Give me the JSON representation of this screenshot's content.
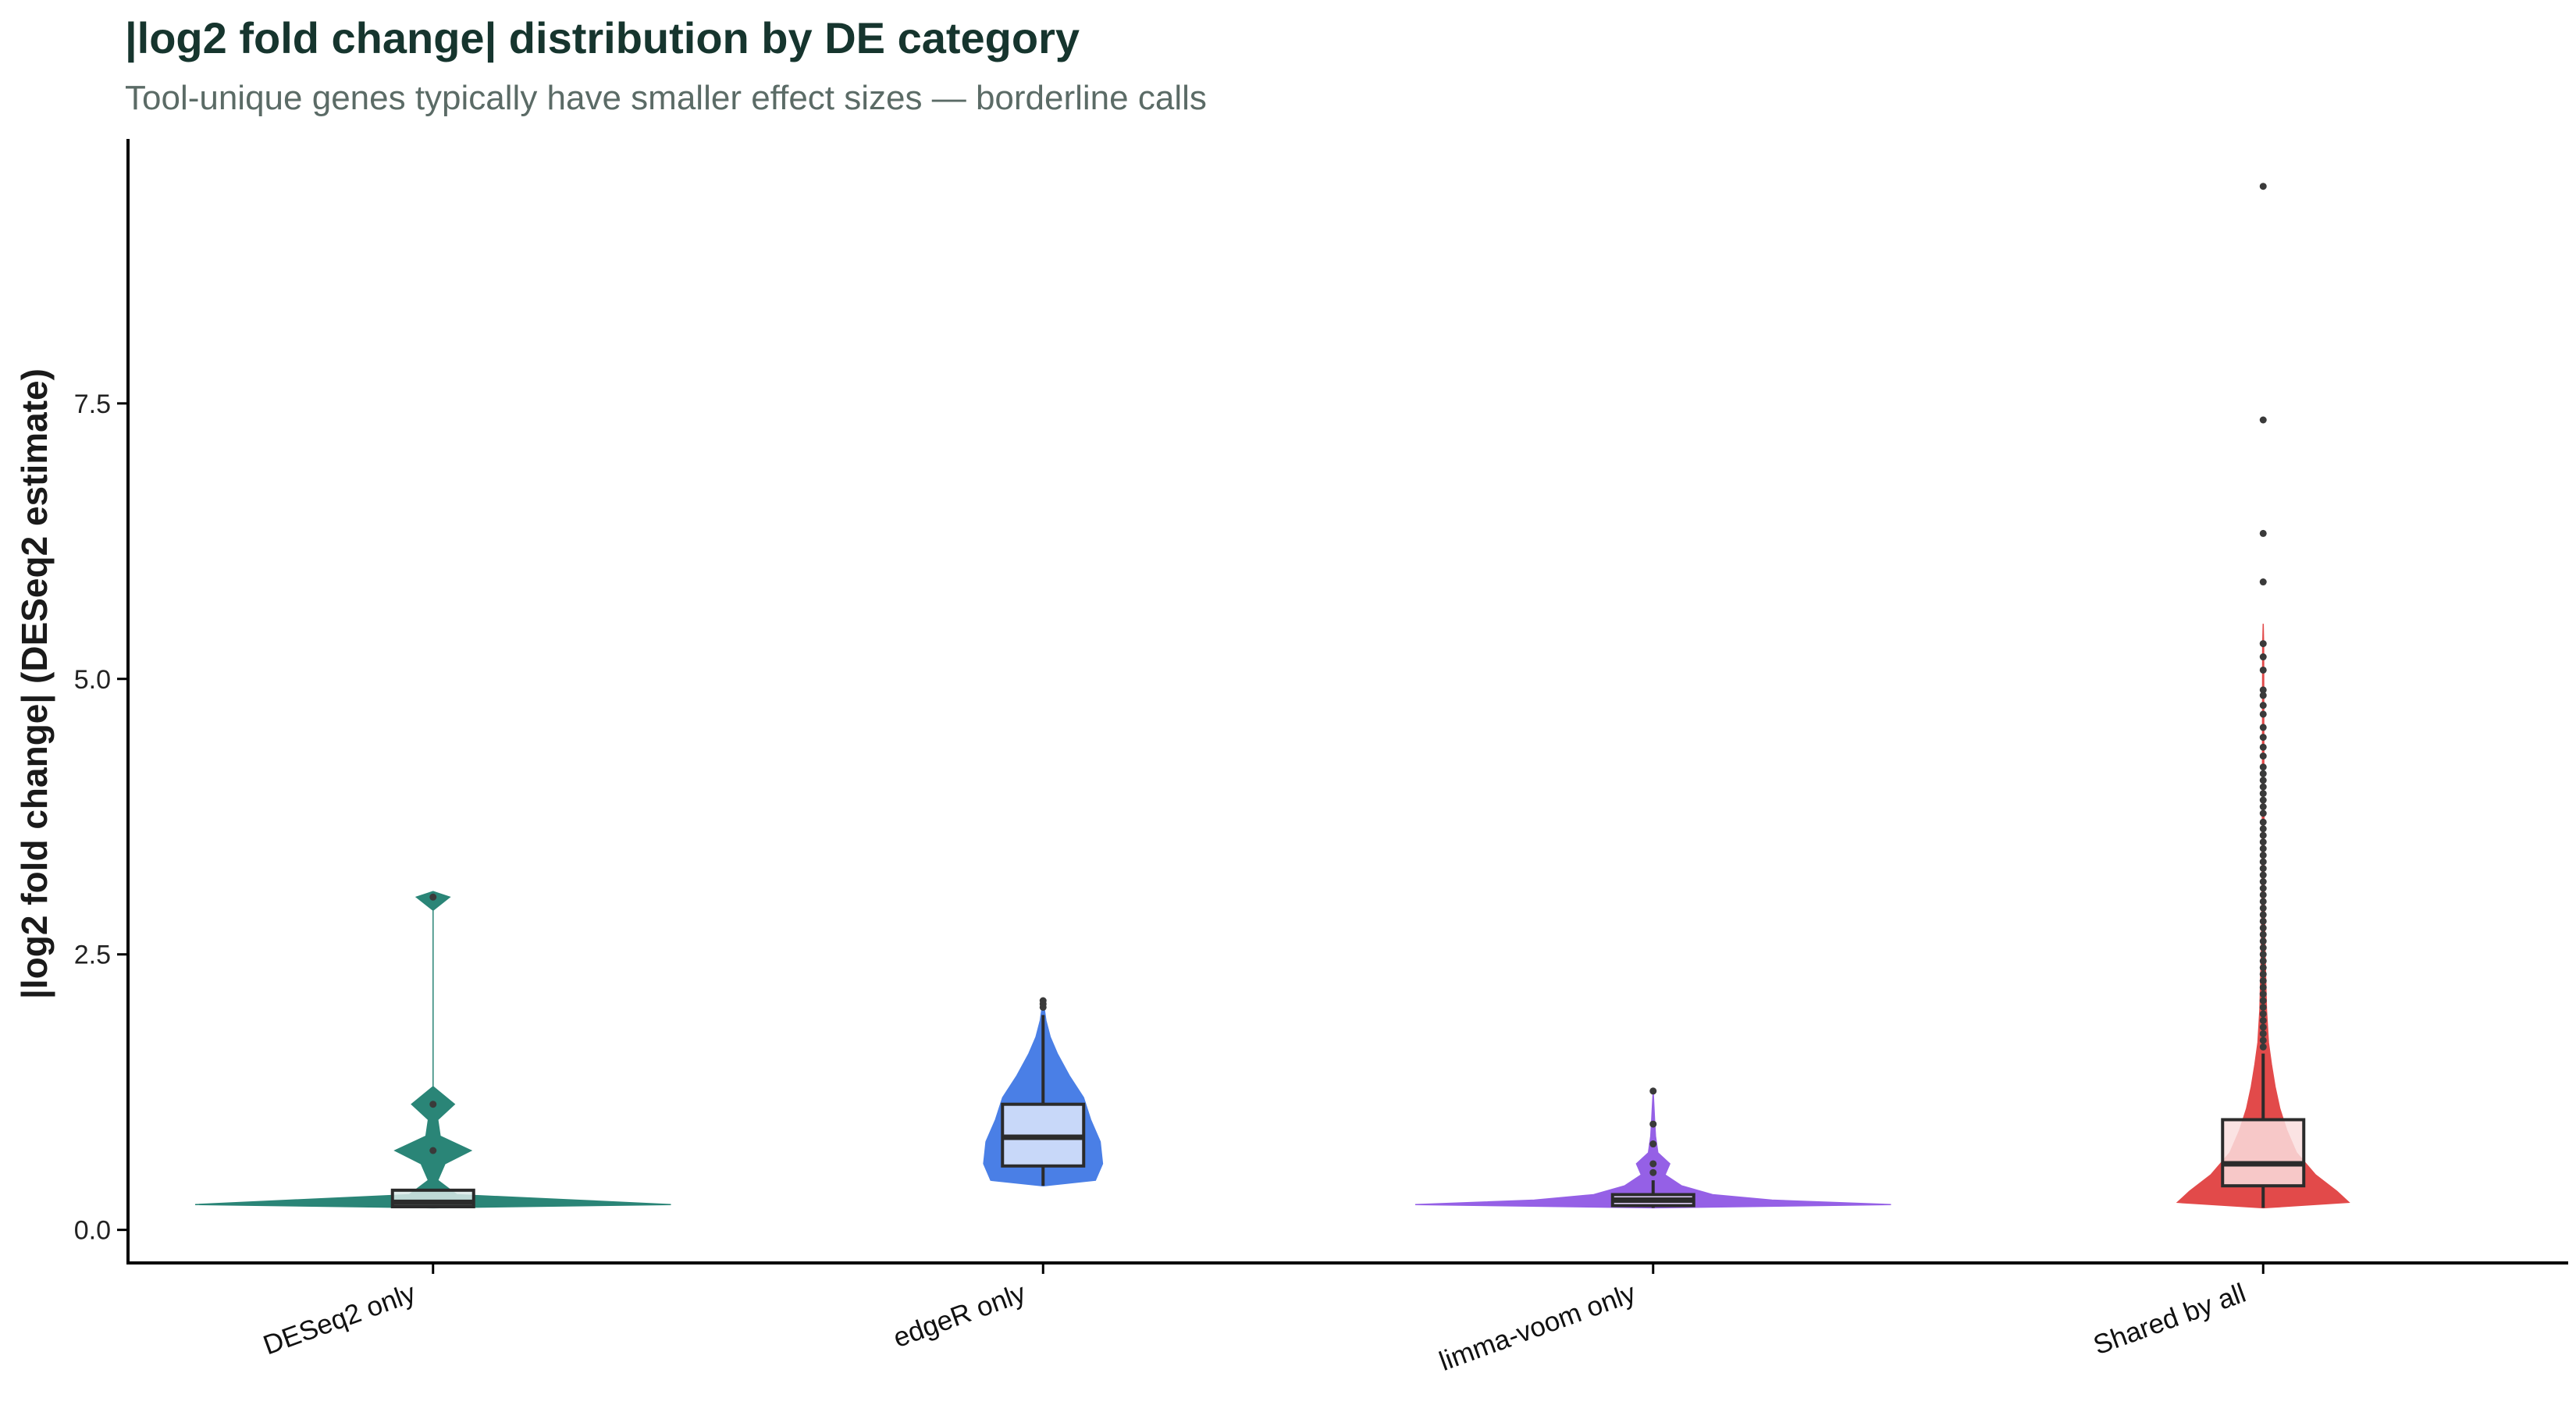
{
  "chart_data": {
    "type": "violin",
    "title": "|log2 fold change| distribution by DE category",
    "subtitle": "Tool-unique genes typically have smaller effect sizes — borderline calls",
    "xlabel": "",
    "ylabel": "|log2 fold change| (DESeq2 estimate)",
    "ylim": [
      -0.3,
      9.9
    ],
    "yticks": [
      "0.0",
      "2.5",
      "5.0",
      "7.5"
    ],
    "grid": false,
    "legend": "none",
    "categories": [
      "DESeq2 only",
      "edgeR only",
      "limma-voom only",
      "Shared by all"
    ],
    "colors": {
      "DESeq2 only": "#2a8577",
      "edgeR only": "#4a7fe6",
      "limma-voom only": "#9560e6",
      "Shared by all": "#e24a4a"
    },
    "boxes": [
      {
        "category": "DESeq2 only",
        "q1": 0.21,
        "median": 0.25,
        "q3": 0.36,
        "whisker_low": 0.2,
        "whisker_high": 0.36
      },
      {
        "category": "edgeR only",
        "q1": 0.58,
        "median": 0.84,
        "q3": 1.14,
        "whisker_low": 0.4,
        "whisker_high": 1.95
      },
      {
        "category": "limma-voom only",
        "q1": 0.22,
        "median": 0.27,
        "q3": 0.32,
        "whisker_low": 0.2,
        "whisker_high": 0.45
      },
      {
        "category": "Shared by all",
        "q1": 0.4,
        "median": 0.6,
        "q3": 1.0,
        "whisker_low": 0.2,
        "whisker_high": 1.6
      }
    ],
    "outliers": [
      {
        "category": "DESeq2 only",
        "values": [
          3.02,
          1.14,
          0.72
        ]
      },
      {
        "category": "edgeR only",
        "values": [
          2.02,
          2.05,
          2.08
        ]
      },
      {
        "category": "limma-voom only",
        "values": [
          1.26,
          0.96,
          0.78,
          0.6,
          0.52
        ]
      },
      {
        "category": "Shared by all",
        "values": [
          9.47,
          7.35,
          6.32,
          5.88,
          5.32,
          5.2,
          5.08,
          4.9,
          4.85,
          4.76,
          4.68,
          4.56,
          4.47,
          4.38,
          4.3,
          4.2,
          4.14,
          4.08,
          4.02,
          3.96,
          3.9,
          3.84,
          3.78,
          3.7,
          3.64,
          3.58,
          3.52,
          3.46,
          3.4,
          3.34,
          3.28,
          3.22,
          3.16,
          3.1,
          3.04,
          2.98,
          2.92,
          2.86,
          2.8,
          2.74,
          2.68,
          2.62,
          2.56,
          2.5,
          2.44,
          2.38,
          2.32,
          2.26,
          2.2,
          2.14,
          2.08,
          2.02,
          1.96,
          1.9,
          1.84,
          1.78,
          1.72,
          1.66
        ]
      }
    ],
    "violins": [
      {
        "category": "DESeq2 only",
        "profile": [
          [
            0.2,
            0.0
          ],
          [
            0.23,
            1.0
          ],
          [
            0.27,
            0.6
          ],
          [
            0.32,
            0.1
          ],
          [
            0.45,
            0.02
          ],
          [
            0.6,
            0.05
          ],
          [
            0.72,
            0.16
          ],
          [
            0.85,
            0.03
          ],
          [
            1.0,
            0.02
          ],
          [
            1.14,
            0.09
          ],
          [
            1.3,
            0.0
          ],
          [
            2.9,
            0.0
          ],
          [
            3.02,
            0.07
          ],
          [
            3.07,
            0.0
          ]
        ]
      },
      {
        "category": "edgeR only",
        "profile": [
          [
            0.4,
            0.0
          ],
          [
            0.45,
            0.22
          ],
          [
            0.6,
            0.25
          ],
          [
            0.8,
            0.24
          ],
          [
            1.0,
            0.2
          ],
          [
            1.2,
            0.17
          ],
          [
            1.4,
            0.11
          ],
          [
            1.6,
            0.06
          ],
          [
            1.75,
            0.03
          ],
          [
            1.9,
            0.012
          ],
          [
            2.08,
            0.0
          ]
        ]
      },
      {
        "category": "limma-voom only",
        "profile": [
          [
            0.2,
            0.0
          ],
          [
            0.23,
            1.0
          ],
          [
            0.27,
            0.5
          ],
          [
            0.32,
            0.25
          ],
          [
            0.4,
            0.12
          ],
          [
            0.5,
            0.05
          ],
          [
            0.6,
            0.07
          ],
          [
            0.7,
            0.02
          ],
          [
            0.85,
            0.01
          ],
          [
            1.0,
            0.006
          ],
          [
            1.26,
            0.0
          ]
        ]
      },
      {
        "category": "Shared by all",
        "profile": [
          [
            0.2,
            0.0
          ],
          [
            0.25,
            0.36
          ],
          [
            0.35,
            0.31
          ],
          [
            0.5,
            0.22
          ],
          [
            0.7,
            0.14
          ],
          [
            0.9,
            0.1
          ],
          [
            1.1,
            0.07
          ],
          [
            1.3,
            0.05
          ],
          [
            1.5,
            0.035
          ],
          [
            1.7,
            0.022
          ],
          [
            2.0,
            0.014
          ],
          [
            2.5,
            0.008
          ],
          [
            3.0,
            0.005
          ],
          [
            4.0,
            0.003
          ],
          [
            5.3,
            0.002
          ],
          [
            5.5,
            0.0
          ]
        ]
      }
    ]
  }
}
